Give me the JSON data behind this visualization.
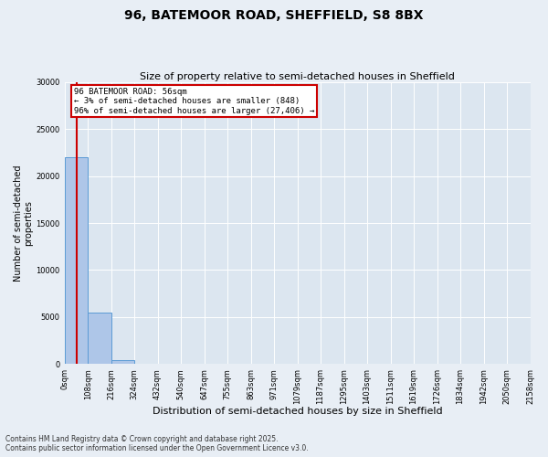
{
  "title_line1": "96, BATEMOOR ROAD, SHEFFIELD, S8 8BX",
  "title_line2": "Size of property relative to semi-detached houses in Sheffield",
  "xlabel": "Distribution of semi-detached houses by size in Sheffield",
  "ylabel": "Number of semi-detached\nproperties",
  "footnote": "Contains HM Land Registry data © Crown copyright and database right 2025.\nContains public sector information licensed under the Open Government Licence v3.0.",
  "bin_labels": [
    "0sqm",
    "108sqm",
    "216sqm",
    "324sqm",
    "432sqm",
    "540sqm",
    "647sqm",
    "755sqm",
    "863sqm",
    "971sqm",
    "1079sqm",
    "1187sqm",
    "1295sqm",
    "1403sqm",
    "1511sqm",
    "1619sqm",
    "1726sqm",
    "1834sqm",
    "1942sqm",
    "2050sqm",
    "2158sqm"
  ],
  "bar_values": [
    22000,
    5500,
    400,
    50,
    20,
    8,
    4,
    2,
    1,
    1,
    0,
    0,
    0,
    0,
    0,
    0,
    0,
    0,
    0,
    0
  ],
  "bar_color": "#aec6e8",
  "bar_edge_color": "#5b9bd5",
  "property_line_x": 0.52,
  "property_line_color": "#cc0000",
  "ylim": [
    0,
    30000
  ],
  "yticks": [
    0,
    5000,
    10000,
    15000,
    20000,
    25000,
    30000
  ],
  "annotation_title": "96 BATEMOOR ROAD: 56sqm",
  "annotation_line1": "← 3% of semi-detached houses are smaller (848)",
  "annotation_line2": "96% of semi-detached houses are larger (27,406) →",
  "annotation_box_color": "#cc0000",
  "bg_color": "#e8eef5",
  "plot_bg_color": "#dce6f0",
  "title1_fontsize": 10,
  "title2_fontsize": 8,
  "xlabel_fontsize": 8,
  "ylabel_fontsize": 7,
  "tick_fontsize": 6,
  "annot_fontsize": 6.5,
  "footnote_fontsize": 5.5
}
